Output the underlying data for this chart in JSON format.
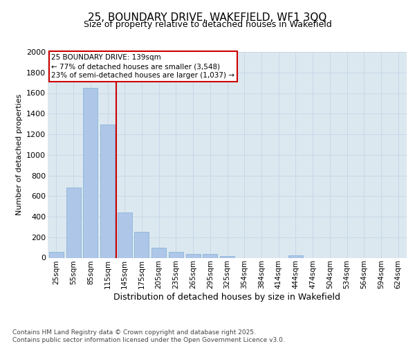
{
  "title": "25, BOUNDARY DRIVE, WAKEFIELD, WF1 3QQ",
  "subtitle": "Size of property relative to detached houses in Wakefield",
  "xlabel": "Distribution of detached houses by size in Wakefield",
  "ylabel": "Number of detached properties",
  "categories": [
    "25sqm",
    "55sqm",
    "85sqm",
    "115sqm",
    "145sqm",
    "175sqm",
    "205sqm",
    "235sqm",
    "265sqm",
    "295sqm",
    "325sqm",
    "354sqm",
    "384sqm",
    "414sqm",
    "444sqm",
    "474sqm",
    "504sqm",
    "534sqm",
    "564sqm",
    "594sqm",
    "624sqm"
  ],
  "values": [
    55,
    680,
    1650,
    1295,
    440,
    250,
    100,
    60,
    40,
    40,
    20,
    0,
    0,
    0,
    25,
    0,
    0,
    0,
    0,
    0,
    0
  ],
  "bar_color": "#aec6e8",
  "bar_edge_color": "#7fafd4",
  "grid_color": "#c8d8e8",
  "background_color": "#dce8f0",
  "vline_color": "#cc0000",
  "vline_idx": 3.5,
  "annotation_text": "25 BOUNDARY DRIVE: 139sqm\n← 77% of detached houses are smaller (3,548)\n23% of semi-detached houses are larger (1,037) →",
  "annotation_box_color": "#ffffff",
  "annotation_box_edge_color": "#cc0000",
  "footer_line1": "Contains HM Land Registry data © Crown copyright and database right 2025.",
  "footer_line2": "Contains public sector information licensed under the Open Government Licence v3.0.",
  "ylim": [
    0,
    2000
  ],
  "yticks": [
    0,
    200,
    400,
    600,
    800,
    1000,
    1200,
    1400,
    1600,
    1800,
    2000
  ],
  "title_fontsize": 11,
  "subtitle_fontsize": 9,
  "ylabel_fontsize": 8,
  "xlabel_fontsize": 9,
  "tick_fontsize": 8,
  "xtick_fontsize": 7.5,
  "annotation_fontsize": 7.5,
  "footer_fontsize": 6.5
}
